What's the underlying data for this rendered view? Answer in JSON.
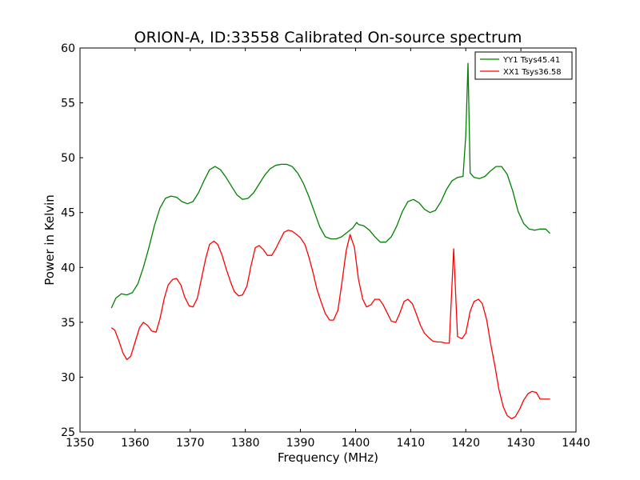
{
  "chart_data": {
    "type": "line",
    "title": "ORION-A, ID:33558 Calibrated On-source spectrum",
    "xlabel": "Frequency (MHz)",
    "ylabel": "Power in Kelvin",
    "xlim": [
      1350,
      1440
    ],
    "ylim": [
      25,
      60
    ],
    "xticks": [
      1350,
      1360,
      1370,
      1380,
      1390,
      1400,
      1410,
      1420,
      1430,
      1440
    ],
    "yticks": [
      25,
      30,
      35,
      40,
      45,
      50,
      55,
      60
    ],
    "grid": false,
    "legend_position": "top-right",
    "series": [
      {
        "name": "YY1 Tsys45.41",
        "color": "#008000",
        "x": [
          1355.7,
          1356.5,
          1357.5,
          1358.5,
          1359.5,
          1360.5,
          1361.5,
          1362.5,
          1363.5,
          1364.5,
          1365.5,
          1366.5,
          1367.5,
          1368.5,
          1369.5,
          1370.5,
          1371.5,
          1372.5,
          1373.5,
          1374.5,
          1375.5,
          1376.5,
          1377.5,
          1378.5,
          1379.5,
          1380.5,
          1381.5,
          1382.5,
          1383.5,
          1384.5,
          1385.5,
          1386.5,
          1387.5,
          1388.5,
          1389.5,
          1390.5,
          1391.5,
          1392.5,
          1393.5,
          1394.5,
          1395.5,
          1396.5,
          1397.5,
          1398.5,
          1399.5,
          1400.2,
          1400.6,
          1401.5,
          1402.5,
          1403.5,
          1404.5,
          1405.5,
          1406.5,
          1407.5,
          1408.5,
          1409.5,
          1410.5,
          1411.5,
          1412.5,
          1413.5,
          1414.5,
          1415.5,
          1416.5,
          1417.5,
          1418.5,
          1419.5,
          1420.0,
          1420.4,
          1420.8,
          1421.5,
          1422.5,
          1423.5,
          1424.5,
          1425.5,
          1426.5,
          1427.5,
          1428.5,
          1429.5,
          1430.5,
          1431.5,
          1432.5,
          1433.5,
          1434.5,
          1435.3
        ],
        "y": [
          36.3,
          37.2,
          37.6,
          37.5,
          37.7,
          38.5,
          40.0,
          41.8,
          43.8,
          45.4,
          46.3,
          46.5,
          46.4,
          46.0,
          45.8,
          46.0,
          46.8,
          47.9,
          48.9,
          49.2,
          48.9,
          48.2,
          47.4,
          46.6,
          46.2,
          46.3,
          46.8,
          47.6,
          48.4,
          49.0,
          49.3,
          49.4,
          49.4,
          49.2,
          48.6,
          47.7,
          46.5,
          45.1,
          43.7,
          42.8,
          42.6,
          42.6,
          42.8,
          43.2,
          43.6,
          44.1,
          43.9,
          43.8,
          43.4,
          42.8,
          42.3,
          42.3,
          42.8,
          43.8,
          45.1,
          46.0,
          46.2,
          45.9,
          45.3,
          45.0,
          45.2,
          46.0,
          47.1,
          47.9,
          48.2,
          48.3,
          52.0,
          58.6,
          48.6,
          48.2,
          48.1,
          48.3,
          48.8,
          49.2,
          49.2,
          48.5,
          47.0,
          45.1,
          44.0,
          43.5,
          43.4,
          43.5,
          43.5,
          43.1
        ]
      },
      {
        "name": "XX1 Tsys36.58",
        "color": "#ff0000",
        "x": [
          1355.7,
          1356.3,
          1357.0,
          1357.8,
          1358.5,
          1359.2,
          1360.0,
          1360.8,
          1361.5,
          1362.3,
          1363.0,
          1363.8,
          1364.5,
          1365.3,
          1366.0,
          1366.8,
          1367.5,
          1368.3,
          1369.0,
          1369.8,
          1370.5,
          1371.3,
          1372.0,
          1372.8,
          1373.5,
          1374.3,
          1375.0,
          1375.8,
          1376.5,
          1377.3,
          1378.0,
          1378.8,
          1379.5,
          1380.3,
          1381.0,
          1381.8,
          1382.5,
          1383.3,
          1384.0,
          1384.8,
          1385.5,
          1386.3,
          1387.0,
          1387.8,
          1388.5,
          1389.3,
          1390.0,
          1390.8,
          1391.5,
          1392.3,
          1393.0,
          1393.8,
          1394.5,
          1395.3,
          1396.0,
          1396.8,
          1397.5,
          1398.3,
          1399.0,
          1399.8,
          1400.5,
          1401.3,
          1402.0,
          1402.8,
          1403.5,
          1404.3,
          1405.0,
          1405.8,
          1406.5,
          1407.3,
          1408.0,
          1408.8,
          1409.5,
          1410.3,
          1411.0,
          1411.8,
          1412.5,
          1413.3,
          1414.0,
          1414.8,
          1415.5,
          1416.3,
          1417.0,
          1417.8,
          1418.5,
          1419.3,
          1420.0,
          1420.4,
          1420.8,
          1421.5,
          1422.3,
          1423.0,
          1423.8,
          1424.5,
          1425.3,
          1426.0,
          1426.8,
          1427.5,
          1428.3,
          1429.0,
          1429.8,
          1430.5,
          1431.3,
          1432.0,
          1432.8,
          1433.5,
          1434.3,
          1435.0,
          1435.3
        ],
        "y": [
          34.5,
          34.3,
          33.4,
          32.2,
          31.6,
          31.9,
          33.2,
          34.5,
          35.0,
          34.7,
          34.2,
          34.1,
          35.3,
          37.2,
          38.4,
          38.9,
          39.0,
          38.4,
          37.3,
          36.5,
          36.4,
          37.2,
          38.9,
          40.8,
          42.1,
          42.4,
          42.1,
          41.1,
          39.9,
          38.7,
          37.8,
          37.4,
          37.5,
          38.3,
          40.1,
          41.8,
          42.0,
          41.6,
          41.1,
          41.1,
          41.7,
          42.5,
          43.2,
          43.4,
          43.3,
          43.0,
          42.7,
          42.1,
          41.0,
          39.5,
          38.0,
          36.8,
          35.8,
          35.2,
          35.2,
          36.1,
          38.5,
          41.5,
          43.0,
          41.8,
          39.0,
          37.1,
          36.4,
          36.6,
          37.1,
          37.1,
          36.6,
          35.8,
          35.1,
          35.0,
          35.8,
          36.9,
          37.1,
          36.7,
          35.8,
          34.7,
          34.0,
          33.6,
          33.3,
          33.2,
          33.2,
          33.1,
          33.1,
          41.7,
          33.7,
          33.5,
          34.0,
          35.0,
          36.0,
          36.9,
          37.1,
          36.7,
          35.2,
          33.1,
          31.0,
          28.9,
          27.3,
          26.5,
          26.2,
          26.4,
          27.1,
          27.9,
          28.5,
          28.7,
          28.6,
          28.0,
          28.0,
          28.0,
          28.0
        ]
      }
    ]
  }
}
